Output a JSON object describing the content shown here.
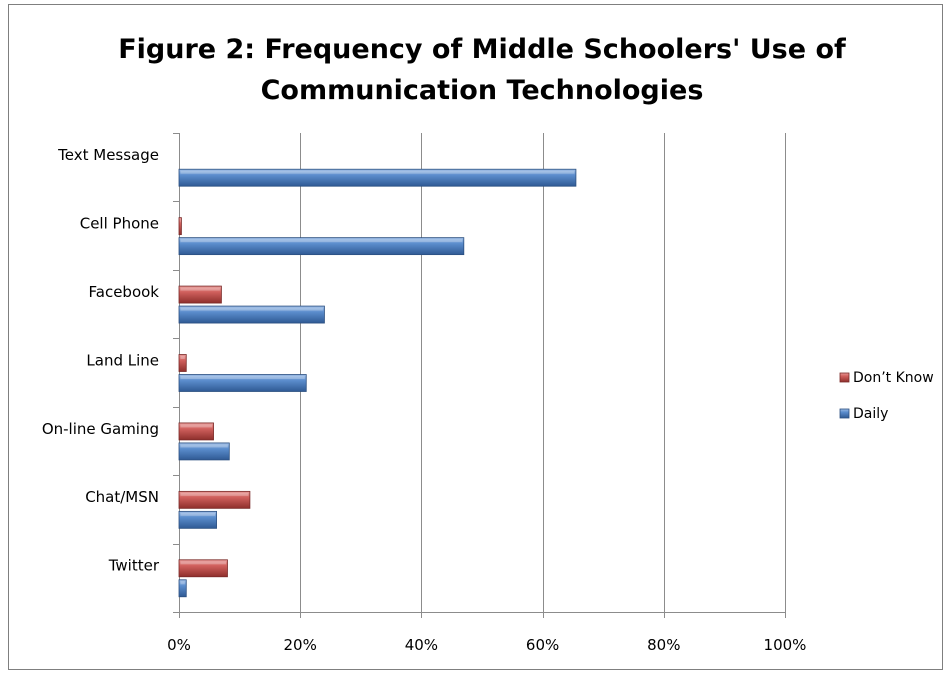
{
  "chart_data": {
    "type": "bar",
    "orientation": "horizontal",
    "title": "Figure 2:  Frequency of Middle Schoolers' Use of Communication Technologies",
    "title_lines": [
      "Figure 2:  Frequency of Middle Schoolers' Use of",
      "Communication Technologies"
    ],
    "categories": [
      "Text Message",
      "Cell Phone",
      "Facebook",
      "Land Line",
      "On-line Gaming",
      "Chat/MSN",
      "Twitter"
    ],
    "series": [
      {
        "name": "Don’t Know",
        "color": "#c0504d",
        "values": [
          0,
          0.4,
          7,
          1.2,
          5.7,
          11.7,
          8
        ]
      },
      {
        "name": "Daily",
        "color": "#4f81bd",
        "values": [
          65.5,
          47,
          24,
          21,
          8.3,
          6.2,
          1.2
        ]
      }
    ],
    "xlim": [
      0,
      100
    ],
    "x_ticks": [
      "0%",
      "20%",
      "40%",
      "60%",
      "80%",
      "100%"
    ],
    "x_tick_values": [
      0,
      20,
      40,
      60,
      80,
      100
    ],
    "grid": true,
    "legend_position": "right"
  }
}
